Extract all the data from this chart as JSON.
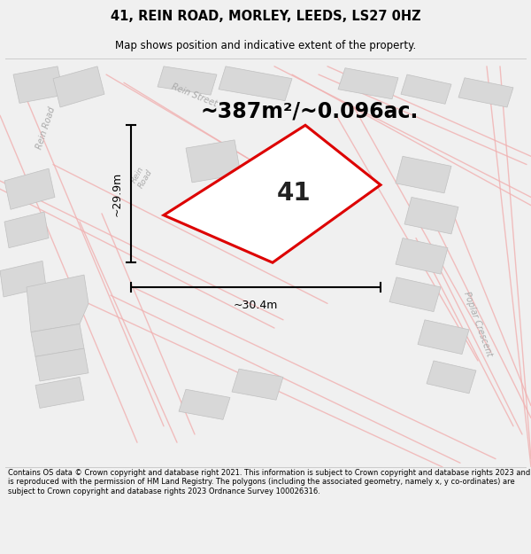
{
  "title": "41, REIN ROAD, MORLEY, LEEDS, LS27 0HZ",
  "subtitle": "Map shows position and indicative extent of the property.",
  "area_text": "~387m²/~0.096ac.",
  "number_label": "41",
  "dim_width": "~30.4m",
  "dim_height": "~29.9m",
  "footer": "Contains OS data © Crown copyright and database right 2021. This information is subject to Crown copyright and database rights 2023 and is reproduced with the permission of HM Land Registry. The polygons (including the associated geometry, namely x, y co-ordinates) are subject to Crown copyright and database rights 2023 Ordnance Survey 100026316.",
  "bg_color": "#f0f0f0",
  "map_bg": "#ffffff",
  "road_color": "#f0b0b0",
  "building_color": "#d8d8d8",
  "building_edge": "#c0c0c0",
  "property_fill": "#ffffff",
  "property_edge": "#dd0000",
  "title_color": "#000000",
  "road_label_color": "#aaaaaa",
  "dim_color": "#000000",
  "footer_color": "#000000",
  "title_fontsize": 10.5,
  "subtitle_fontsize": 8.5,
  "area_fontsize": 17,
  "number_fontsize": 20,
  "road_label_fontsize": 7,
  "dim_fontsize": 9,
  "footer_fontsize": 6.0
}
